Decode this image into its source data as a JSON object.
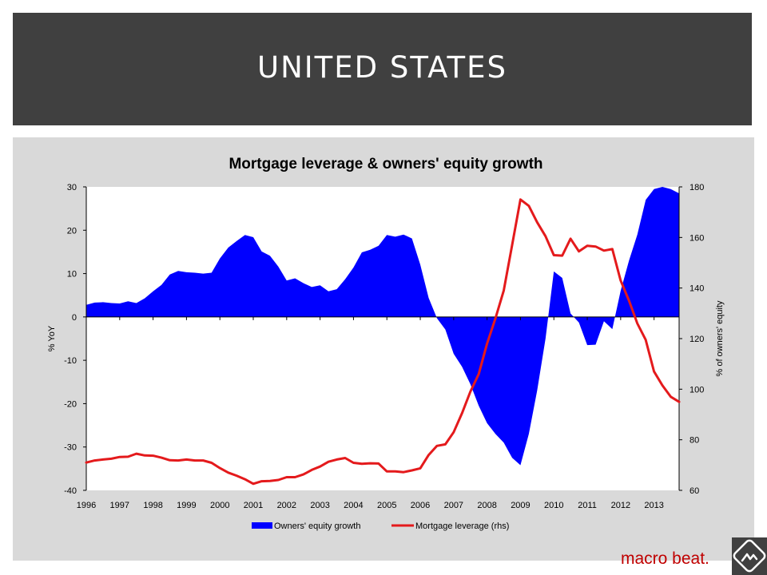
{
  "slide": {
    "title": "UNITED STATES",
    "brand": "macro beat."
  },
  "colors": {
    "title_bar": "#404040",
    "panel": "#d9d9d9",
    "area": "#0000ff",
    "line": "#e41a1c",
    "brand": "#c00000"
  },
  "icons": {
    "logo": "macro-beat-logo-icon"
  },
  "chart_data": {
    "type": "area",
    "title": "Mortgage leverage & owners' equity growth",
    "ylabel": "% YoY",
    "y2label": "% of owners' equity",
    "ylim": [
      -40,
      30
    ],
    "y2lim": [
      60,
      180
    ],
    "yticks": [
      30,
      20,
      10,
      0,
      -10,
      -20,
      -30,
      -40
    ],
    "y2ticks": [
      180,
      160,
      140,
      120,
      100,
      80,
      60
    ],
    "xlim": [
      1996,
      2013.75
    ],
    "xticks": [
      "1996",
      "1997",
      "1998",
      "1999",
      "2000",
      "2001",
      "2002",
      "2003",
      "2004",
      "2005",
      "2006",
      "2007",
      "2008",
      "2009",
      "2010",
      "2011",
      "2012",
      "2013"
    ],
    "legend": {
      "position": "bottom",
      "items": [
        {
          "label": "Owners' equity growth",
          "type": "area"
        },
        {
          "label": "Mortgage leverage (rhs)",
          "type": "line"
        }
      ]
    },
    "series": [
      {
        "name": "Owners' equity growth",
        "type": "area",
        "axis": "left",
        "x": [
          1996,
          1996.25,
          1996.5,
          1996.75,
          1997,
          1997.25,
          1997.5,
          1997.75,
          1998,
          1998.25,
          1998.5,
          1998.75,
          1999,
          1999.25,
          1999.5,
          1999.75,
          2000,
          2000.25,
          2000.5,
          2000.75,
          2001,
          2001.25,
          2001.5,
          2001.75,
          2002,
          2002.25,
          2002.5,
          2002.75,
          2003,
          2003.25,
          2003.5,
          2003.75,
          2004,
          2004.25,
          2004.5,
          2004.75,
          2005,
          2005.25,
          2005.5,
          2005.75,
          2006,
          2006.25,
          2006.5,
          2006.75,
          2007,
          2007.25,
          2007.5,
          2007.75,
          2008,
          2008.25,
          2008.5,
          2008.75,
          2009,
          2009.25,
          2009.5,
          2009.75,
          2010,
          2010.25,
          2010.5,
          2010.75,
          2011,
          2011.25,
          2011.5,
          2011.75,
          2012,
          2012.25,
          2012.5,
          2012.75,
          2013,
          2013.25,
          2013.5,
          2013.75
        ],
        "values": [
          2.8,
          3.3,
          3.4,
          3.2,
          3.1,
          3.6,
          3.2,
          4.3,
          5.9,
          7.4,
          9.8,
          10.6,
          10.3,
          10.2,
          10.0,
          10.2,
          13.5,
          16.0,
          17.5,
          18.9,
          18.4,
          15.1,
          14.1,
          11.6,
          8.4,
          8.9,
          7.8,
          6.9,
          7.3,
          5.9,
          6.4,
          8.7,
          11.4,
          14.9,
          15.5,
          16.4,
          18.9,
          18.5,
          19.0,
          18.1,
          12.1,
          4.4,
          -0.3,
          -2.9,
          -8.5,
          -11.5,
          -15.5,
          -20.5,
          -24.5,
          -27.0,
          -29.0,
          -32.5,
          -34.2,
          -27.0,
          -17.0,
          -5.0,
          10.5,
          9.0,
          0.8,
          -1.3,
          -6.5,
          -6.4,
          -1.0,
          -2.8,
          6.0,
          13.0,
          19.0,
          27.0,
          29.5,
          30.0,
          29.5,
          28.5
        ]
      },
      {
        "name": "Mortgage leverage (rhs)",
        "type": "line",
        "axis": "right",
        "x": [
          1996,
          1996.25,
          1996.5,
          1996.75,
          1997,
          1997.25,
          1997.5,
          1997.75,
          1998,
          1998.25,
          1998.5,
          1998.75,
          1999,
          1999.25,
          1999.5,
          1999.75,
          2000,
          2000.25,
          2000.5,
          2000.75,
          2001,
          2001.25,
          2001.5,
          2001.75,
          2002,
          2002.25,
          2002.5,
          2002.75,
          2003,
          2003.25,
          2003.5,
          2003.75,
          2004,
          2004.25,
          2004.5,
          2004.75,
          2005,
          2005.25,
          2005.5,
          2005.75,
          2006,
          2006.25,
          2006.5,
          2006.75,
          2007,
          2007.25,
          2007.5,
          2007.75,
          2008,
          2008.25,
          2008.5,
          2008.75,
          2009,
          2009.25,
          2009.5,
          2009.75,
          2010,
          2010.25,
          2010.5,
          2010.75,
          2011,
          2011.25,
          2011.5,
          2011.75,
          2012,
          2012.25,
          2012.5,
          2012.75,
          2013,
          2013.25,
          2013.5,
          2013.75
        ],
        "values": [
          71,
          71.8,
          72.2,
          72.5,
          73.2,
          73.3,
          74.5,
          73.8,
          73.7,
          72.9,
          71.9,
          71.8,
          72.2,
          71.8,
          71.8,
          70.9,
          68.8,
          67.0,
          65.8,
          64.4,
          62.6,
          63.6,
          63.7,
          64.1,
          65.2,
          65.2,
          66.3,
          68.1,
          69.4,
          71.3,
          72.2,
          72.8,
          70.9,
          70.5,
          70.7,
          70.6,
          67.5,
          67.5,
          67.2,
          67.9,
          68.7,
          74.0,
          77.6,
          78.2,
          83.0,
          90.5,
          99.0,
          106.0,
          118.0,
          128.0,
          139.0,
          157.0,
          175.0,
          172.5,
          166.0,
          160.5,
          153.0,
          152.8,
          159.5,
          154.5,
          156.7,
          156.4,
          154.8,
          155.4,
          143.0,
          135.0,
          126.0,
          119.5,
          107.0,
          101.5,
          97.0,
          95.0
        ]
      }
    ]
  }
}
